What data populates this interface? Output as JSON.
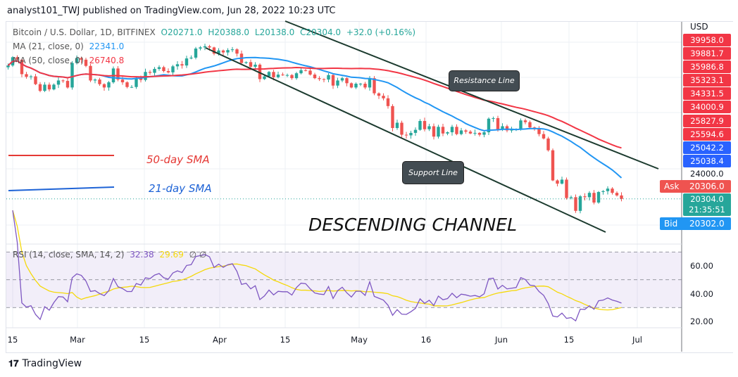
{
  "header": {
    "publisher": "analyst101_TWJ published on TradingView.com, Jun 28, 2022 10:23 UTC"
  },
  "legend": {
    "symbol": "Bitcoin / U.S. Dollar, 1D, BITFINEX",
    "open": "O20271.0",
    "high": "H20388.0",
    "low": "L20138.0",
    "close": "C20304.0",
    "change": "+32.0 (+0.16%)",
    "ma21_label": "MA (21, close, 0)",
    "ma21_value": "22341.0",
    "ma50_label": "MA (50, close, 0)",
    "ma50_value": "26740.8",
    "rsi_label": "RSI (14, close, SMA, 14, 2)",
    "rsi_value": "32.38",
    "rsi_sma_value": "29.69",
    "rsi_extra": "∅ ∅"
  },
  "annotations": {
    "resistance": "Resistance Line",
    "support": "Support Line",
    "sma50": "50-day SMA",
    "sma21": "21-day SMA",
    "title": "DESCENDING CHANNEL"
  },
  "price_axis": {
    "currency": "USD",
    "red_tags": [
      "39958.0",
      "39881.7",
      "35986.8",
      "35323.1",
      "34331.5",
      "34000.9",
      "25827.9",
      "25594.6"
    ],
    "blue_tags": [
      "25042.2",
      "25038.4"
    ],
    "tick": "24000.0",
    "ask_label": "Ask",
    "ask": "20306.0",
    "last": "20304.0",
    "countdown": "21:35:51",
    "bid_label": "Bid",
    "bid": "20302.0"
  },
  "rsi_axis": [
    "60.00",
    "40.00",
    "20.00"
  ],
  "footer": {
    "brand": "TradingView"
  },
  "colors": {
    "up": "#26a69a",
    "down": "#ef5350",
    "ma21": "#2196f3",
    "ma50": "#f23645",
    "rsi": "#7e57c2",
    "rsi_sma": "#f5d90a",
    "ask": "#ef5350",
    "bid": "#2196f3"
  },
  "chart_data": {
    "type": "candlestick",
    "scale": "log",
    "start_date": "2022-02-14",
    "x_ticks": [
      "15",
      "Mar",
      "15",
      "Apr",
      "15",
      "May",
      "16",
      "Jun",
      "15",
      "Jul"
    ],
    "closes": [
      42600,
      44600,
      44000,
      40600,
      40000,
      40100,
      38400,
      37000,
      38300,
      37300,
      38300,
      39200,
      39100,
      37700,
      43200,
      44400,
      44000,
      42500,
      39200,
      39400,
      38400,
      37700,
      38800,
      41900,
      39400,
      38800,
      37800,
      37800,
      39700,
      39300,
      41100,
      40900,
      41800,
      42200,
      41300,
      41000,
      42400,
      42900,
      42600,
      44300,
      44500,
      46800,
      47100,
      47400,
      47100,
      45500,
      46300,
      45800,
      46400,
      46600,
      45500,
      43200,
      43400,
      42300,
      42800,
      39500,
      40100,
      41100,
      39900,
      40500,
      40400,
      40400,
      39700,
      40800,
      41500,
      41400,
      40500,
      39700,
      39500,
      39400,
      40400,
      38100,
      39200,
      39700,
      38600,
      37700,
      38500,
      38500,
      37700,
      39700,
      36500,
      36000,
      35500,
      34000,
      30100,
      31000,
      29000,
      28900,
      29300,
      29800,
      31300,
      29900,
      30400,
      28700,
      30300,
      29200,
      29400,
      30300,
      29100,
      29700,
      29500,
      29200,
      29300,
      29000,
      29400,
      31700,
      31800,
      29800,
      30400,
      29700,
      29800,
      29900,
      31400,
      31100,
      30200,
      30100,
      29100,
      28400,
      26600,
      22500,
      22100,
      22600,
      20400,
      20500,
      19000,
      20600,
      20500,
      21000,
      19900,
      21100,
      21200,
      21500,
      21000,
      20700,
      20304
    ],
    "ma_periods": [
      21,
      50
    ],
    "rsi": {
      "period": 14,
      "sma": 14,
      "upper": 70,
      "middle": 50,
      "lower": 30
    }
  }
}
